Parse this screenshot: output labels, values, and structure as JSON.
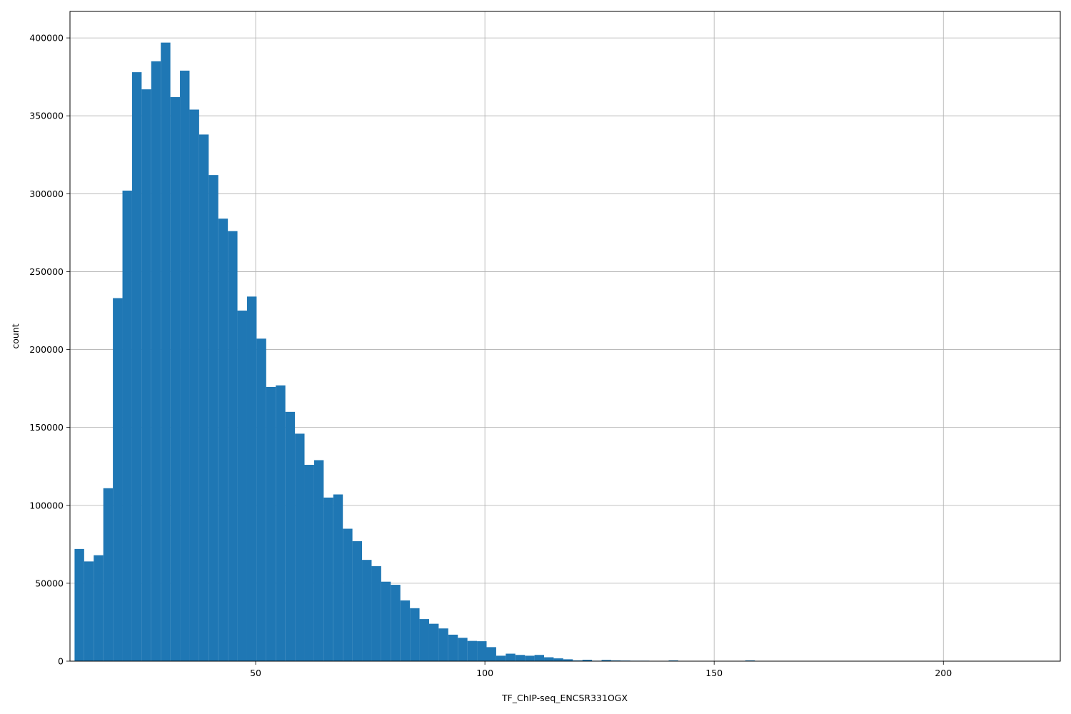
{
  "chart_data": {
    "type": "bar",
    "title": "",
    "xlabel": "TF_ChIP-seq_ENCSR331OGX",
    "ylabel": "count",
    "xlim": [
      9.5,
      225.5
    ],
    "ylim": [
      0,
      417000
    ],
    "grid": true,
    "bar_color": "#1f77b4",
    "grid_color": "#b0b0b0",
    "x_ticks": [
      50,
      100,
      150,
      200
    ],
    "x_tick_labels": [
      "50",
      "100",
      "150",
      "200"
    ],
    "y_ticks": [
      0,
      50000,
      100000,
      150000,
      200000,
      250000,
      300000,
      350000,
      400000
    ],
    "y_tick_labels": [
      "0",
      "50000",
      "100000",
      "150000",
      "200000",
      "250000",
      "300000",
      "350000",
      "400000"
    ],
    "bin_start": 10.5,
    "bin_width": 2.09,
    "values": [
      72000,
      64000,
      68000,
      111000,
      233000,
      302000,
      378000,
      367000,
      385000,
      397000,
      362000,
      379000,
      354000,
      338000,
      312000,
      284000,
      276000,
      225000,
      234000,
      207000,
      176000,
      177000,
      160000,
      146000,
      126000,
      129000,
      105000,
      107000,
      85000,
      77000,
      65000,
      61000,
      51000,
      49000,
      39000,
      34000,
      27000,
      24000,
      21000,
      17000,
      15000,
      13000,
      12800,
      9000,
      3500,
      4800,
      4000,
      3500,
      4000,
      2500,
      1800,
      1200,
      500,
      900,
      300,
      800,
      500,
      400,
      300,
      300,
      100,
      100,
      500,
      100,
      100,
      100,
      100,
      100,
      100,
      100,
      500,
      100,
      100,
      100,
      100,
      100,
      100,
      100,
      100,
      100,
      100,
      100,
      100,
      100,
      100,
      100,
      100,
      100,
      100,
      100,
      100,
      100,
      100,
      100,
      100,
      100,
      100,
      100,
      100,
      100
    ]
  }
}
